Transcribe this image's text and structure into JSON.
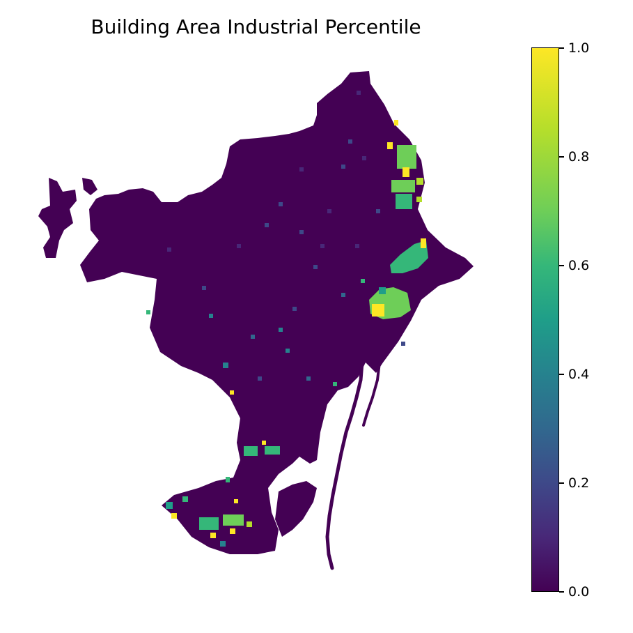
{
  "title": "Building Area Industrial Percentile",
  "colorbar": {
    "label": "",
    "ticks": [
      "0.0",
      "0.2",
      "0.4",
      "0.6",
      "0.8",
      "1.0"
    ],
    "colormap": "viridis",
    "min": 0.0,
    "max": 1.0
  },
  "colors": {
    "base": "#440154",
    "low": "#3e4989",
    "mid": "#26828e",
    "midhigh": "#35b779",
    "high": "#6ece58",
    "top": "#fde725"
  },
  "chart_data": {
    "type": "heatmap",
    "title": "Building Area Industrial Percentile",
    "value_range": [
      0.0,
      1.0
    ],
    "colormap": "viridis",
    "legend": "right (colorbar)",
    "hotspots": [
      {
        "region": "north-east coastal band",
        "value": 0.85
      },
      {
        "region": "east coast middle",
        "value": 0.75
      },
      {
        "region": "east coast lower (port zone)",
        "value": 0.9
      },
      {
        "region": "south-west peninsula",
        "value": 0.7
      },
      {
        "region": "interior scattered",
        "value": 0.3
      }
    ]
  }
}
